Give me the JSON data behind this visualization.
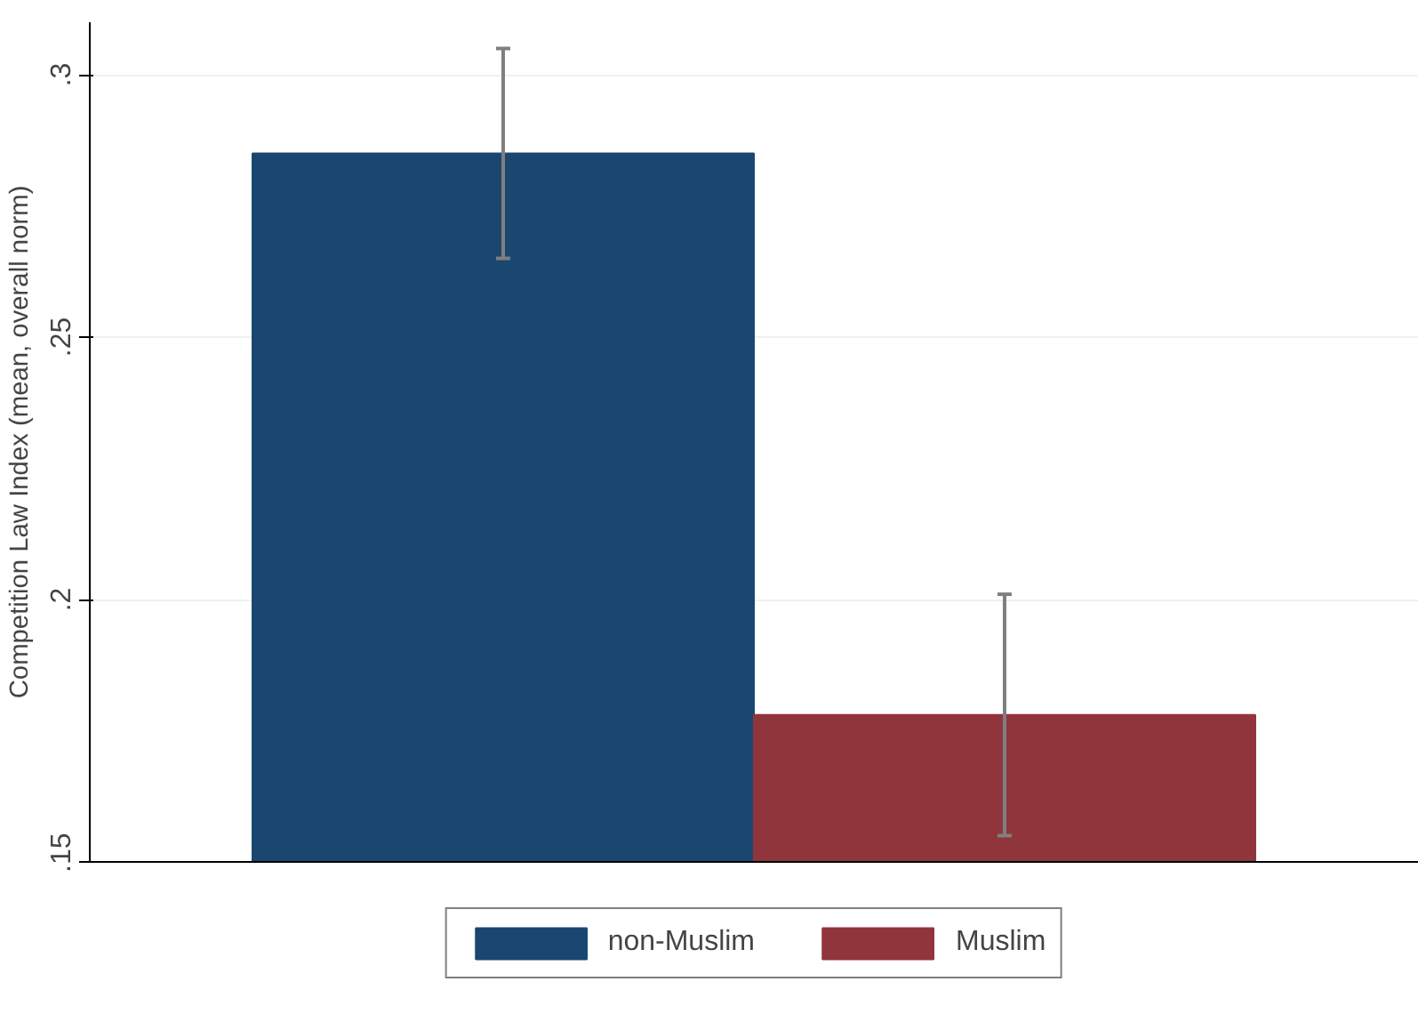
{
  "chart_data": {
    "type": "bar",
    "ylabel": "Competition Law Index (mean, overall norm)",
    "categories": [
      null
    ],
    "series": [
      {
        "name": "non-Muslim",
        "color": "#1a476f",
        "values": [
          0.285
        ],
        "errors": [
          [
            0.265,
            0.305
          ]
        ]
      },
      {
        "name": "Muslim",
        "color": "#90353b",
        "values": [
          0.178
        ],
        "errors": [
          [
            0.155,
            0.201
          ]
        ]
      }
    ],
    "ylim": [
      0.15,
      0.31
    ],
    "yticks": [
      {
        "value": 0.15,
        "label": ".15"
      },
      {
        "value": 0.2,
        "label": ".2"
      },
      {
        "value": 0.25,
        "label": ".25"
      },
      {
        "value": 0.3,
        "label": ".3"
      }
    ],
    "grid": "y",
    "legend": "bottom"
  }
}
